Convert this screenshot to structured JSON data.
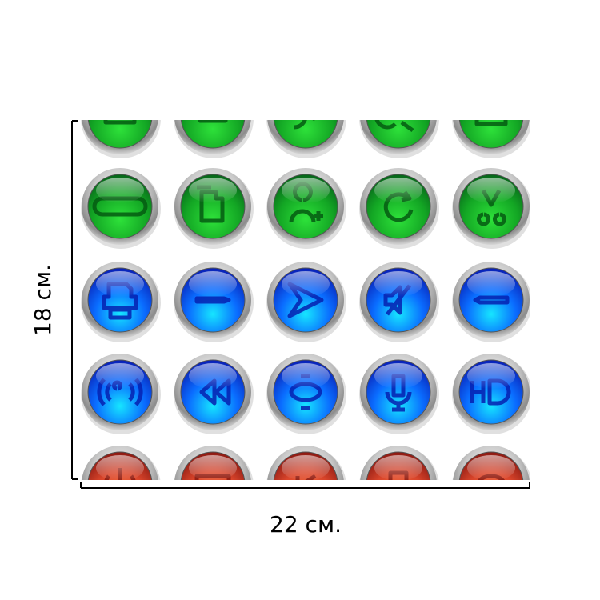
{
  "dimensions": {
    "height_label": "18 см.",
    "width_label": "22 см."
  }
}
